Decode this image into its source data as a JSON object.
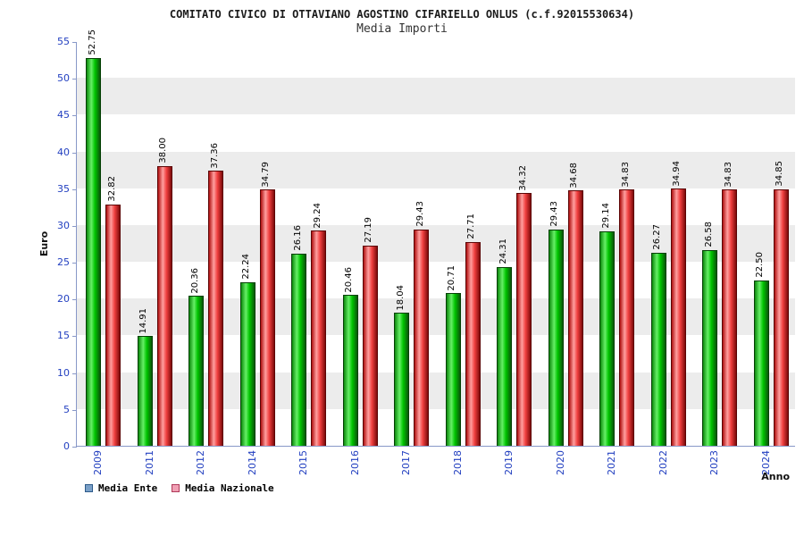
{
  "header": {
    "title": "COMITATO CIVICO DI OTTAVIANO AGOSTINO CIFARIELLO ONLUS (c.f.92015530634)",
    "subtitle": "Media Importi"
  },
  "chart_data": {
    "type": "bar",
    "title": "Media Importi",
    "xlabel": "Anno",
    "ylabel": "Euro",
    "ylim": [
      0,
      55
    ],
    "ytick_step": 5,
    "yticks": [
      0,
      5,
      10,
      15,
      20,
      25,
      30,
      35,
      40,
      45,
      50,
      55
    ],
    "grid_bands": true,
    "categories": [
      "2009",
      "2011",
      "2012",
      "2014",
      "2015",
      "2016",
      "2017",
      "2018",
      "2019",
      "2020",
      "2021",
      "2022",
      "2023",
      "2024"
    ],
    "series": [
      {
        "name": "Media Ente",
        "values": [
          52.75,
          14.91,
          20.36,
          22.24,
          26.16,
          20.46,
          18.04,
          20.71,
          24.31,
          29.43,
          29.14,
          26.27,
          26.58,
          22.5
        ],
        "color": "#00c400",
        "gradient": [
          "#0d8a0d 0%",
          "#66ef66 35%",
          "#00c400 62%",
          "#0a560a 100%"
        ],
        "border": "#054005"
      },
      {
        "name": "Media Nazionale",
        "values": [
          32.82,
          38.0,
          37.36,
          34.79,
          29.24,
          27.19,
          29.43,
          27.71,
          34.32,
          34.68,
          34.83,
          34.94,
          34.83,
          34.85
        ],
        "color": "#e03030",
        "gradient": [
          "#b01010 0%",
          "#ff9f9f 35%",
          "#f04040 62%",
          "#7d0a0a 100%"
        ],
        "border": "#5c0505"
      }
    ],
    "legend": {
      "position": "bottom",
      "items": [
        {
          "label": "Media Ente",
          "swatch": "#7aa0c8",
          "swatch_border": "#2d5a8a"
        },
        {
          "label": "Media Nazionale",
          "swatch": "#f0a0b4",
          "swatch_border": "#b03a5a"
        }
      ]
    }
  },
  "colors": {
    "axis": "#8898c8",
    "tick_label": "#2340c0",
    "band_gray": "#ececec",
    "band_white": "#ffffff",
    "value_label": "#000000"
  }
}
